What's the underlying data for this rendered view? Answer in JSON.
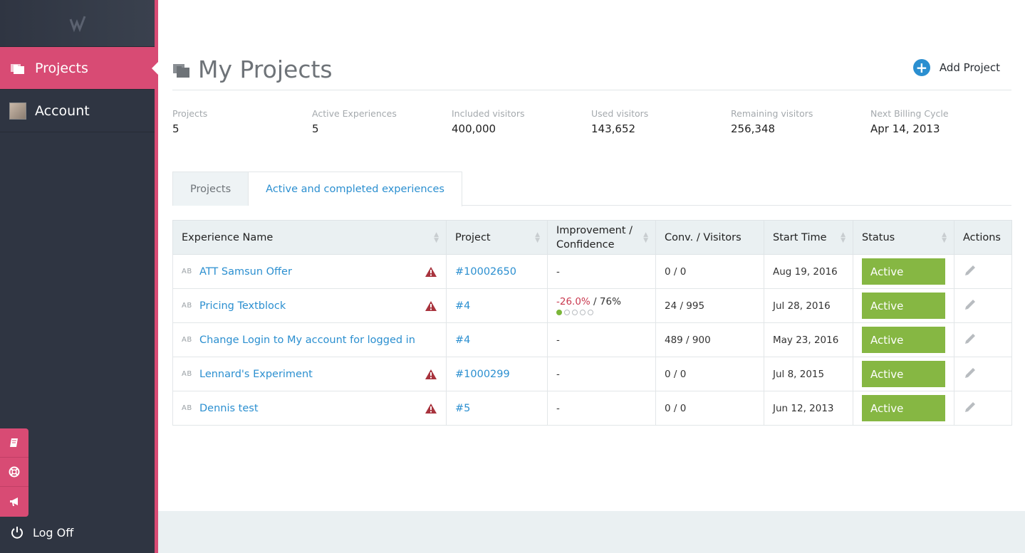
{
  "sidebar": {
    "items": [
      {
        "label": "Projects"
      },
      {
        "label": "Account"
      }
    ],
    "logoff_label": "Log Off"
  },
  "header": {
    "title": "My Projects",
    "add_project_label": "Add Project"
  },
  "stats": [
    {
      "label": "Projects",
      "value": "5"
    },
    {
      "label": "Active Experiences",
      "value": "5"
    },
    {
      "label": "Included visitors",
      "value": "400,000"
    },
    {
      "label": "Used visitors",
      "value": "143,652"
    },
    {
      "label": "Remaining visitors",
      "value": "256,348"
    },
    {
      "label": "Next Billing Cycle",
      "value": "Apr 14, 2013"
    }
  ],
  "tabs": [
    {
      "label": "Projects"
    },
    {
      "label": "Active and completed experiences"
    }
  ],
  "table": {
    "columns": [
      "Experience Name",
      "Project",
      "Improvement / Confidence",
      "Conv. / Visitors",
      "Start Time",
      "Status",
      "Actions"
    ],
    "rows": [
      {
        "tag": "AB",
        "name": "ATT Samsun Offer",
        "project": "#10002650",
        "improvement": "-",
        "conv": "0 / 0",
        "start": "Aug 19, 2016",
        "status": "Active"
      },
      {
        "tag": "AB",
        "name": "Pricing Textblock",
        "project": "#4",
        "improvement_neg": "-26.0%",
        "improvement_conf": " / 76%",
        "conv": "24 / 995",
        "start": "Jul 28, 2016",
        "status": "Active"
      },
      {
        "tag": "AB",
        "name": "Change Login to My account for logged in",
        "project": "#4",
        "improvement": "-",
        "conv": "489 / 900",
        "start": "May 23, 2016",
        "status": "Active"
      },
      {
        "tag": "AB",
        "name": "Lennard's Experiment",
        "project": "#1000299",
        "improvement": "-",
        "conv": "0 / 0",
        "start": "Jul 8, 2015",
        "status": "Active"
      },
      {
        "tag": "AB",
        "name": "Dennis test",
        "project": "#5",
        "improvement": "-",
        "conv": "0 / 0",
        "start": "Jun 12, 2013",
        "status": "Active"
      }
    ]
  },
  "colors": {
    "accent": "#d84b74",
    "sidebar_bg": "#2f3542",
    "link": "#2b8fd0",
    "status_active": "#86b743",
    "warning": "#a8333d",
    "negative": "#c9394f"
  },
  "icons": [
    "logo-icon",
    "projects-folder-icon",
    "avatar",
    "book-icon",
    "lifebuoy-icon",
    "megaphone-icon",
    "power-icon",
    "plus-icon",
    "warning-icon",
    "pencil-icon",
    "sort-icon"
  ]
}
